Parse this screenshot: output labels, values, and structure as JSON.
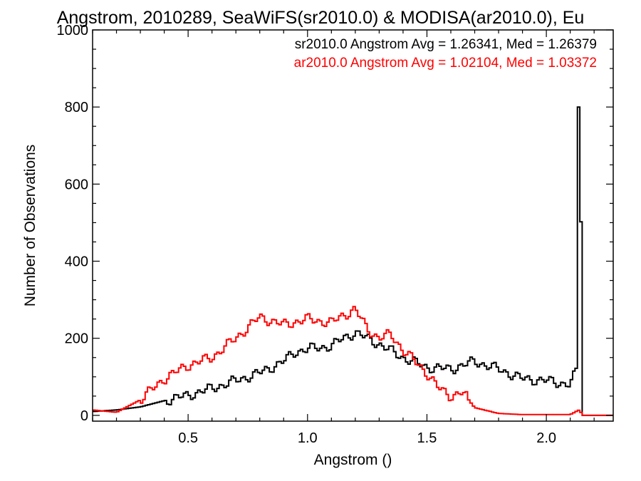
{
  "chart_data": {
    "type": "step-histogram",
    "title": "Angstrom, 2010289, SeaWiFS(sr2010.0) & MODISA(ar2010.0), Eu",
    "xlabel": "Angstrom ()",
    "ylabel": "Number of Observations",
    "xlim": [
      0.1,
      2.28
    ],
    "ylim": [
      -15,
      1000
    ],
    "x_ticks": [
      0.5,
      1.0,
      1.5,
      2.0
    ],
    "x_tick_labels": [
      "0.5",
      "1.0",
      "1.5",
      "2.0"
    ],
    "y_ticks": [
      0,
      200,
      400,
      600,
      800,
      1000
    ],
    "y_tick_labels": [
      "0",
      "200",
      "400",
      "600",
      "800",
      "1000"
    ],
    "grid": false,
    "legend_placement": "top-right",
    "series": [
      {
        "name": "sr2010.0",
        "label": "sr2010.0 Angstrom Avg = 1.26341, Med = 1.26379",
        "color": "#000000",
        "points": [
          [
            0.1,
            10
          ],
          [
            0.2,
            14
          ],
          [
            0.3,
            22
          ],
          [
            0.4,
            38
          ],
          [
            0.5,
            52
          ],
          [
            0.6,
            70
          ],
          [
            0.7,
            90
          ],
          [
            0.8,
            110
          ],
          [
            0.9,
            140
          ],
          [
            0.95,
            165
          ],
          [
            1.0,
            172
          ],
          [
            1.1,
            180
          ],
          [
            1.15,
            200
          ],
          [
            1.2,
            215
          ],
          [
            1.25,
            200
          ],
          [
            1.3,
            185
          ],
          [
            1.4,
            150
          ],
          [
            1.5,
            125
          ],
          [
            1.6,
            120
          ],
          [
            1.7,
            140
          ],
          [
            1.8,
            120
          ],
          [
            1.9,
            95
          ],
          [
            2.0,
            90
          ],
          [
            2.05,
            85
          ],
          [
            2.1,
            80
          ],
          [
            2.13,
            120
          ],
          [
            2.135,
            800
          ],
          [
            2.145,
            510
          ],
          [
            2.15,
            0
          ],
          [
            2.28,
            0
          ]
        ]
      },
      {
        "name": "ar2010.0",
        "label": "ar2010.0 Angstrom Avg = 1.02104, Med = 1.03372",
        "color": "#ff0000",
        "points": [
          [
            0.1,
            14
          ],
          [
            0.2,
            8
          ],
          [
            0.3,
            40
          ],
          [
            0.4,
            95
          ],
          [
            0.5,
            130
          ],
          [
            0.6,
            150
          ],
          [
            0.7,
            200
          ],
          [
            0.8,
            255
          ],
          [
            0.9,
            235
          ],
          [
            1.0,
            250
          ],
          [
            1.1,
            240
          ],
          [
            1.15,
            260
          ],
          [
            1.2,
            275
          ],
          [
            1.25,
            225
          ],
          [
            1.3,
            200
          ],
          [
            1.35,
            210
          ],
          [
            1.4,
            170
          ],
          [
            1.5,
            110
          ],
          [
            1.55,
            70
          ],
          [
            1.6,
            50
          ],
          [
            1.65,
            60
          ],
          [
            1.7,
            20
          ],
          [
            1.8,
            5
          ],
          [
            1.9,
            2
          ],
          [
            2.0,
            2
          ],
          [
            2.1,
            2
          ],
          [
            2.14,
            15
          ],
          [
            2.15,
            0
          ],
          [
            2.28,
            0
          ]
        ]
      }
    ]
  }
}
